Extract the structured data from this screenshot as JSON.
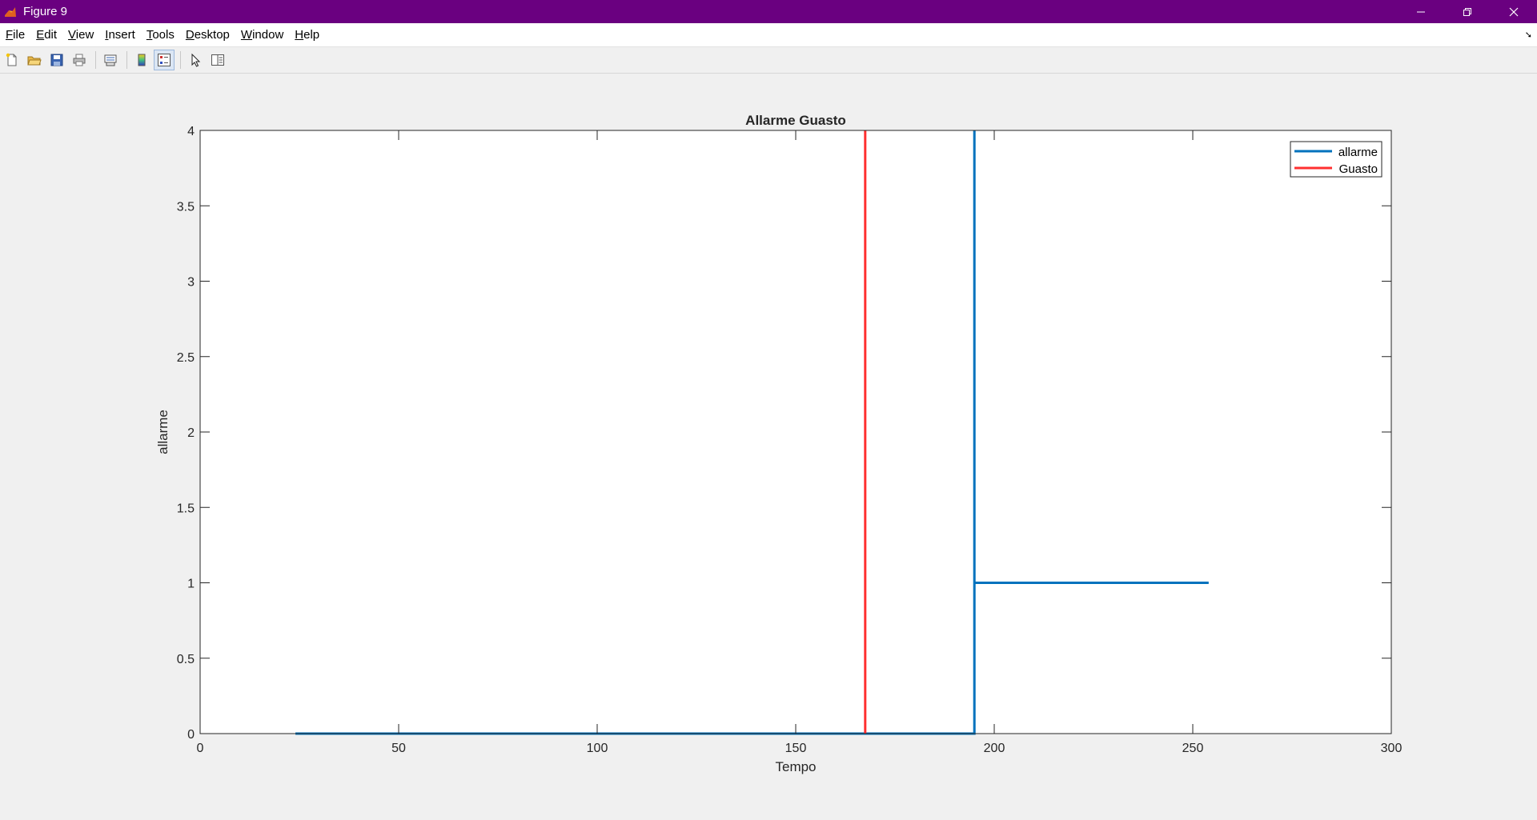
{
  "window": {
    "title": "Figure 9",
    "titlebar_color": "#6a0080"
  },
  "icons": {
    "app": "matlab-icon",
    "minimize": "minimize-icon",
    "restore": "restore-icon",
    "close": "close-icon"
  },
  "menu": {
    "items": [
      {
        "label": "File",
        "mnemonic": "F",
        "rest": "ile"
      },
      {
        "label": "Edit",
        "mnemonic": "E",
        "rest": "dit"
      },
      {
        "label": "View",
        "mnemonic": "V",
        "rest": "iew"
      },
      {
        "label": "Insert",
        "mnemonic": "I",
        "rest": "nsert"
      },
      {
        "label": "Tools",
        "mnemonic": "T",
        "rest": "ools"
      },
      {
        "label": "Desktop",
        "mnemonic": "D",
        "rest": "esktop"
      },
      {
        "label": "Window",
        "mnemonic": "W",
        "rest": "indow"
      },
      {
        "label": "Help",
        "mnemonic": "H",
        "rest": "elp"
      }
    ],
    "dock_icon": "dock-arrow-icon"
  },
  "toolbar": {
    "buttons": [
      "new-figure-icon",
      "open-file-icon",
      "save-icon",
      "print-icon",
      "link-plot-icon",
      "colorbar-icon",
      "legend-icon",
      "edit-plot-icon",
      "property-inspector-icon"
    ]
  },
  "chart_data": {
    "type": "line",
    "title": "Allarme Guasto",
    "xlabel": "Tempo",
    "ylabel": "allarme",
    "xlim": [
      0,
      300
    ],
    "ylim": [
      0,
      4
    ],
    "xticks": [
      "0",
      "50",
      "100",
      "150",
      "200",
      "250",
      "300"
    ],
    "yticks": [
      "0",
      "0.5",
      "1",
      "1.5",
      "2",
      "2.5",
      "3",
      "3.5",
      "4"
    ],
    "grid": false,
    "legend_position": "top-right",
    "series": [
      {
        "name": "allarme",
        "color": "#0072bd",
        "x": [
          24,
          195,
          195,
          195,
          254
        ],
        "y": [
          0,
          0,
          4,
          1,
          1
        ]
      },
      {
        "name": "Guasto",
        "color": "#ff3030",
        "x": [
          167.5,
          167.5
        ],
        "y": [
          0,
          4
        ]
      }
    ]
  }
}
